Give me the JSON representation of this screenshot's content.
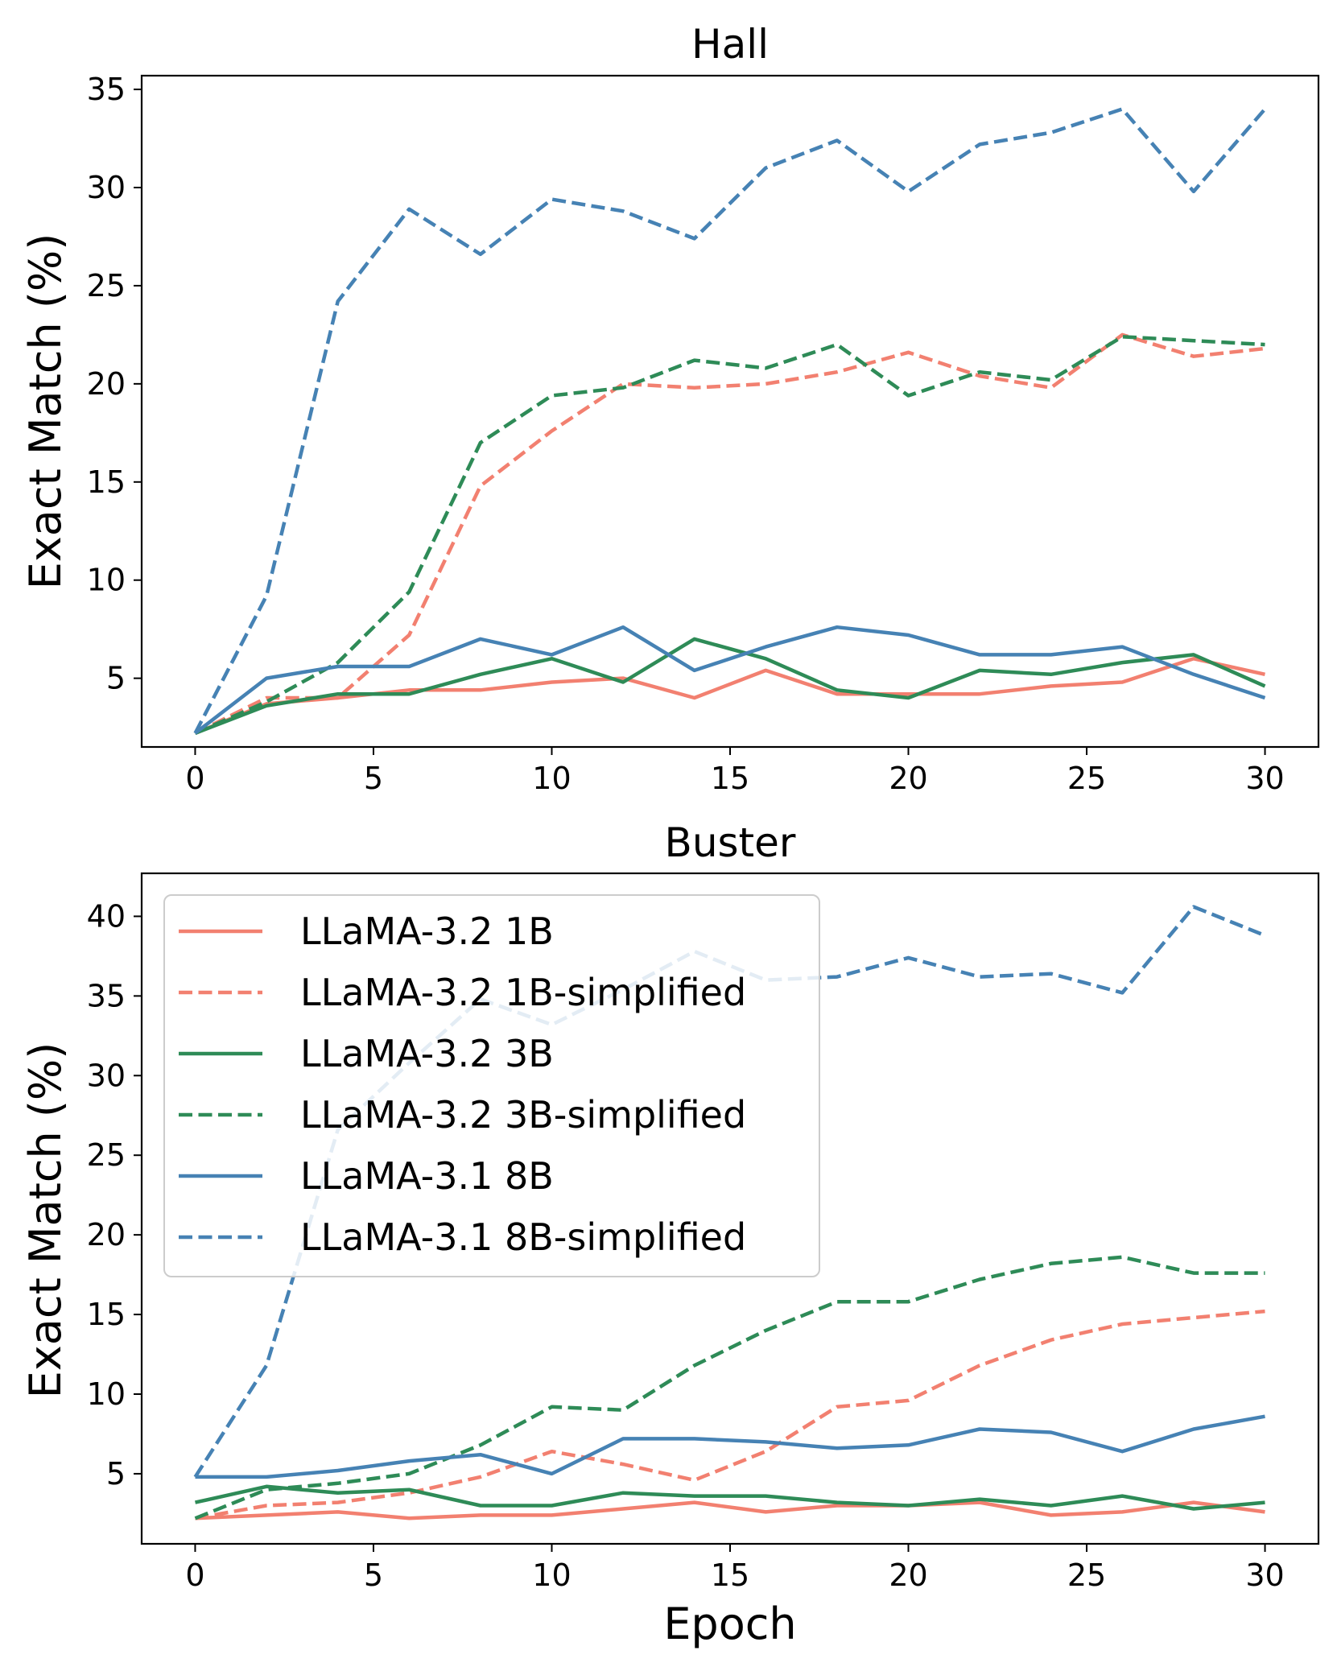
{
  "colors": {
    "llama32_1b": "#f28070",
    "llama32_3b": "#2e8b57",
    "llama31_8b": "#4682b4"
  },
  "chart_data": [
    {
      "type": "line",
      "title": "Hall",
      "xlabel": "",
      "ylabel": "Exact Match (%)",
      "xlim": [
        -1.5,
        31.5
      ],
      "ylim": [
        1.5,
        35.7
      ],
      "xticks": [
        0,
        5,
        10,
        15,
        20,
        25,
        30
      ],
      "yticks": [
        5,
        10,
        15,
        20,
        25,
        30,
        35
      ],
      "grid": false,
      "x": [
        0,
        2,
        4,
        6,
        8,
        10,
        12,
        14,
        16,
        18,
        20,
        22,
        24,
        26,
        28,
        30
      ],
      "series": [
        {
          "name": "LLaMA-3.2 1B",
          "color_key": "llama32_1b",
          "dash": "solid",
          "values": [
            2.2,
            3.7,
            4.0,
            4.4,
            4.4,
            4.8,
            5.0,
            4.0,
            5.4,
            4.2,
            4.2,
            4.2,
            4.6,
            4.8,
            6.0,
            5.2
          ]
        },
        {
          "name": "LLaMA-3.2 1B-simplified",
          "color_key": "llama32_1b",
          "dash": "dashed",
          "values": [
            2.2,
            4.0,
            4.0,
            7.2,
            14.8,
            17.6,
            20.0,
            19.8,
            20.0,
            20.6,
            21.6,
            20.4,
            19.8,
            22.5,
            21.4,
            21.8
          ]
        },
        {
          "name": "LLaMA-3.2 3B",
          "color_key": "llama32_3b",
          "dash": "solid",
          "values": [
            2.2,
            3.6,
            4.2,
            4.2,
            5.2,
            6.0,
            4.8,
            7.0,
            6.0,
            4.4,
            4.0,
            5.4,
            5.2,
            5.8,
            6.2,
            4.6
          ]
        },
        {
          "name": "LLaMA-3.2 3B-simplified",
          "color_key": "llama32_3b",
          "dash": "dashed",
          "values": [
            2.2,
            3.8,
            5.8,
            9.4,
            17.0,
            19.4,
            19.8,
            21.2,
            20.8,
            22.0,
            19.4,
            20.6,
            20.2,
            22.4,
            22.2,
            22.0
          ]
        },
        {
          "name": "LLaMA-3.1 8B",
          "color_key": "llama31_8b",
          "dash": "solid",
          "values": [
            2.2,
            5.0,
            5.6,
            5.6,
            7.0,
            6.2,
            7.6,
            5.4,
            6.6,
            7.6,
            7.2,
            6.2,
            6.2,
            6.6,
            5.2,
            4.0
          ]
        },
        {
          "name": "LLaMA-3.1 8B-simplified",
          "color_key": "llama31_8b",
          "dash": "dashed",
          "values": [
            2.2,
            9.2,
            24.2,
            28.9,
            26.6,
            29.4,
            28.8,
            27.4,
            31.0,
            32.4,
            29.8,
            32.2,
            32.8,
            34.0,
            29.8,
            34.0
          ]
        }
      ]
    },
    {
      "type": "line",
      "title": "Buster",
      "xlabel": "Epoch",
      "ylabel": "Exact Match (%)",
      "xlim": [
        -1.5,
        31.5
      ],
      "ylim": [
        0.6,
        42.7
      ],
      "xticks": [
        0,
        5,
        10,
        15,
        20,
        25,
        30
      ],
      "yticks": [
        5,
        10,
        15,
        20,
        25,
        30,
        35,
        40
      ],
      "grid": false,
      "legend": "upper-left",
      "x": [
        0,
        2,
        4,
        6,
        8,
        10,
        12,
        14,
        16,
        18,
        20,
        22,
        24,
        26,
        28,
        30
      ],
      "series": [
        {
          "name": "LLaMA-3.2 1B",
          "color_key": "llama32_1b",
          "dash": "solid",
          "values": [
            2.2,
            2.4,
            2.6,
            2.2,
            2.4,
            2.4,
            2.8,
            3.2,
            2.6,
            3.0,
            3.0,
            3.2,
            2.4,
            2.6,
            3.2,
            2.6
          ]
        },
        {
          "name": "LLaMA-3.2 1B-simplified",
          "color_key": "llama32_1b",
          "dash": "dashed",
          "values": [
            2.2,
            3.0,
            3.2,
            3.8,
            4.8,
            6.4,
            5.6,
            4.6,
            6.4,
            9.2,
            9.6,
            11.8,
            13.4,
            14.4,
            14.8,
            15.2
          ]
        },
        {
          "name": "LLaMA-3.2 3B",
          "color_key": "llama32_3b",
          "dash": "solid",
          "values": [
            3.2,
            4.2,
            3.8,
            4.0,
            3.0,
            3.0,
            3.8,
            3.6,
            3.6,
            3.2,
            3.0,
            3.4,
            3.0,
            3.6,
            2.8,
            3.2
          ]
        },
        {
          "name": "LLaMA-3.2 3B-simplified",
          "color_key": "llama32_3b",
          "dash": "dashed",
          "values": [
            2.2,
            4.0,
            4.4,
            5.0,
            6.8,
            9.2,
            9.0,
            11.8,
            14.0,
            15.8,
            15.8,
            17.2,
            18.2,
            18.6,
            17.6,
            17.6
          ]
        },
        {
          "name": "LLaMA-3.1 8B",
          "color_key": "llama31_8b",
          "dash": "solid",
          "values": [
            4.8,
            4.8,
            5.2,
            5.8,
            6.2,
            5.0,
            7.2,
            7.2,
            7.0,
            6.6,
            6.8,
            7.8,
            7.6,
            6.4,
            7.8,
            8.6
          ]
        },
        {
          "name": "LLaMA-3.1 8B-simplified",
          "color_key": "llama31_8b",
          "dash": "dashed",
          "values": [
            4.8,
            11.8,
            26.6,
            30.8,
            34.8,
            33.2,
            35.4,
            37.8,
            36.0,
            36.2,
            37.4,
            36.2,
            36.4,
            35.2,
            40.6,
            38.8
          ]
        }
      ]
    }
  ]
}
